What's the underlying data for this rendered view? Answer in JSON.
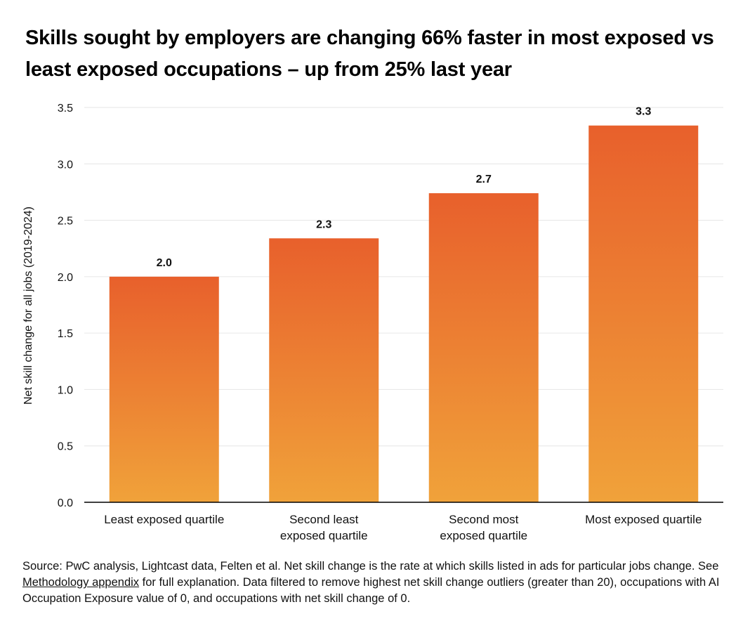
{
  "chart_data": {
    "type": "bar",
    "title": "Skills sought by employers are changing 66% faster in most exposed vs least exposed occupations – up from 25% last year",
    "ylabel": "Net skill change for all jobs (2019-2024)",
    "xlabel": "",
    "categories": [
      [
        "Least exposed quartile"
      ],
      [
        "Second least",
        "exposed quartile"
      ],
      [
        "Second most",
        "exposed quartile"
      ],
      [
        "Most exposed quartile"
      ]
    ],
    "values": [
      2.0,
      2.34,
      2.74,
      3.34
    ],
    "data_labels": [
      "2.0",
      "2.3",
      "2.7",
      "3.3"
    ],
    "ylim": [
      0,
      3.5
    ],
    "yticks": [
      "0.0",
      "0.5",
      "1.0",
      "1.5",
      "2.0",
      "2.5",
      "3.0",
      "3.5"
    ],
    "grid": true,
    "legend": "none",
    "colors": {
      "bar_top": "#E8602C",
      "bar_bottom": "#F0A23A",
      "grid": "#E6E6E6",
      "axis": "#000000"
    }
  },
  "footnote": {
    "before_link": "Source: PwC analysis, Lightcast data, Felten et al. Net skill change is the rate at which skills listed in ads for particular jobs change. See ",
    "link_text": "Methodology appendix",
    "after_link": " for full explanation. Data filtered to remove highest net skill change outliers (greater than 20), occupations with AI Occupation Exposure value of 0, and occupations with net skill change of 0."
  }
}
